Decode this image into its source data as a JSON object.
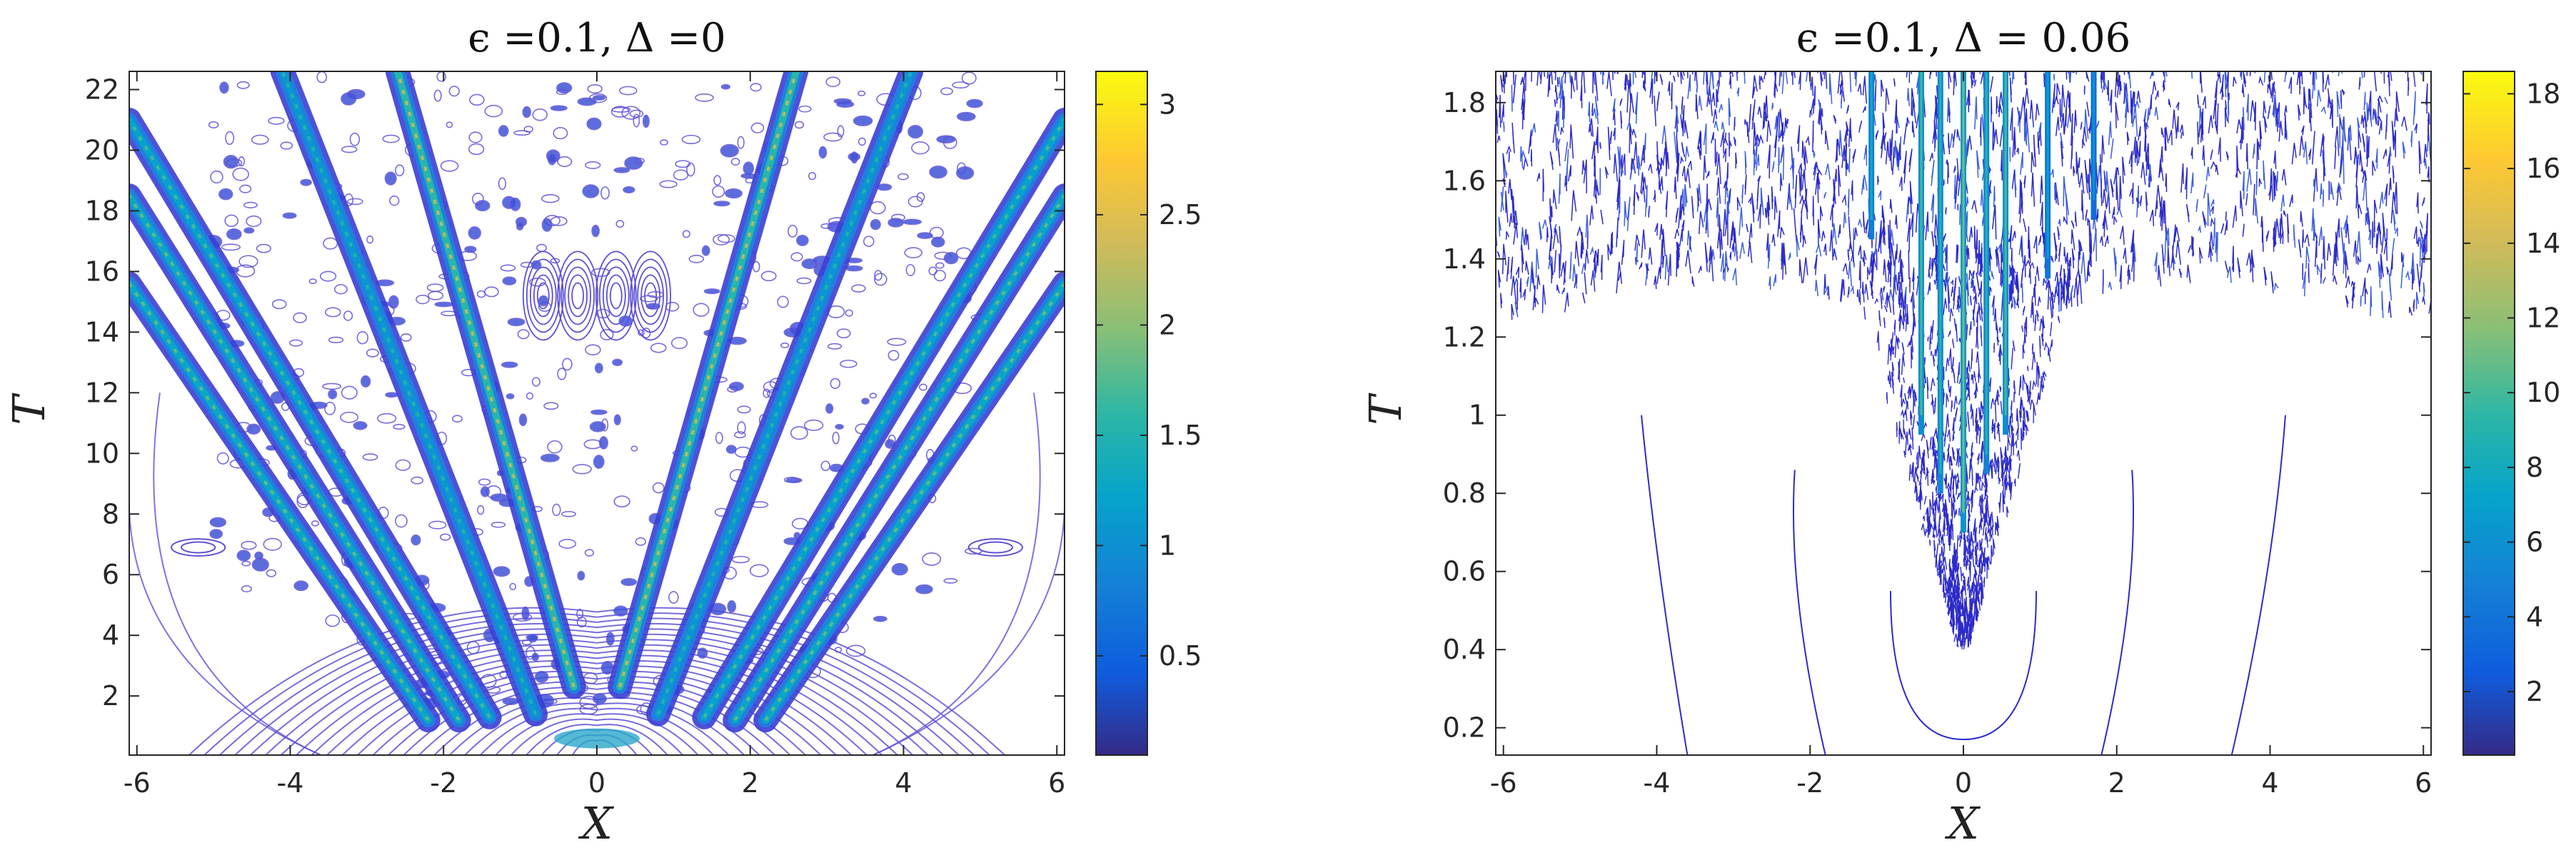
{
  "chart_data": [
    {
      "type": "contour",
      "title": "ϵ =0.1, Δ =0",
      "xlabel": "X",
      "ylabel": "T",
      "xlim": [
        -6.1,
        6.1
      ],
      "ylim": [
        0.05,
        22.6
      ],
      "xticks": [
        -6,
        -4,
        -2,
        0,
        2,
        4,
        6
      ],
      "xtick_labels": [
        "-6",
        "-4",
        "-2",
        "0",
        "2",
        "4",
        "6"
      ],
      "yticks": [
        2,
        4,
        6,
        8,
        10,
        12,
        14,
        16,
        18,
        20,
        22
      ],
      "ytick_labels": [
        "2",
        "4",
        "6",
        "8",
        "10",
        "12",
        "14",
        "16",
        "18",
        "20",
        "22"
      ],
      "colorbar": {
        "min": 0.05,
        "max": 3.15,
        "ticks": [
          0.5,
          1,
          1.5,
          2,
          2.5,
          3
        ],
        "tick_labels": [
          "0.5",
          "1",
          "1.5",
          "2",
          "2.5",
          "3"
        ]
      },
      "rays": [
        {
          "x0": -0.3,
          "t0": 2.3,
          "x1": -2.6,
          "t1": 22.6,
          "peak": 2.2
        },
        {
          "x0": 0.3,
          "t0": 2.3,
          "x1": 2.6,
          "t1": 22.6,
          "peak": 2.2
        },
        {
          "x0": -0.8,
          "t0": 1.4,
          "x1": -4.1,
          "t1": 22.6,
          "peak": 1.5
        },
        {
          "x0": 0.8,
          "t0": 1.4,
          "x1": 4.1,
          "t1": 22.6,
          "peak": 1.5
        },
        {
          "x0": -1.4,
          "t0": 1.3,
          "x1": -6.1,
          "t1": 21.0,
          "peak": 1.7
        },
        {
          "x0": 1.4,
          "t0": 1.3,
          "x1": 6.1,
          "t1": 21.0,
          "peak": 1.7
        },
        {
          "x0": -1.8,
          "t0": 1.2,
          "x1": -6.1,
          "t1": 18.5,
          "peak": 1.8
        },
        {
          "x0": 1.8,
          "t0": 1.2,
          "x1": 6.1,
          "t1": 18.5,
          "peak": 1.8
        },
        {
          "x0": -2.2,
          "t0": 1.2,
          "x1": -6.1,
          "t1": 15.6,
          "peak": 1.8
        },
        {
          "x0": 2.2,
          "t0": 1.2,
          "x1": 6.1,
          "t1": 15.6,
          "peak": 1.8
        }
      ]
    },
    {
      "type": "contour",
      "title": "ϵ =0.1, Δ = 0.06",
      "xlabel": "X",
      "ylabel": "T",
      "xlim": [
        -6.1,
        6.1
      ],
      "ylim": [
        0.13,
        1.88
      ],
      "xticks": [
        -6,
        -4,
        -2,
        0,
        2,
        4,
        6
      ],
      "xtick_labels": [
        "-6",
        "-4",
        "-2",
        "0",
        "2",
        "4",
        "6"
      ],
      "yticks": [
        0.2,
        0.4,
        0.6,
        0.8,
        1,
        1.2,
        1.4,
        1.6,
        1.8
      ],
      "ytick_labels": [
        "0.2",
        "0.4",
        "0.6",
        "0.8",
        "1",
        "1.2",
        "1.4",
        "1.6",
        "1.8"
      ],
      "colorbar": {
        "min": 0.3,
        "max": 18.6,
        "ticks": [
          2,
          4,
          6,
          8,
          10,
          12,
          14,
          16,
          18
        ],
        "tick_labels": [
          "2",
          "4",
          "6",
          "8",
          "10",
          "12",
          "14",
          "16",
          "18"
        ]
      },
      "streaks": [
        {
          "x": -1.2,
          "t0": 1.45,
          "value": 8
        },
        {
          "x": -0.55,
          "t0": 0.95,
          "value": 10
        },
        {
          "x": -0.3,
          "t0": 0.8,
          "value": 9
        },
        {
          "x": 0.0,
          "t0": 0.7,
          "value": 11
        },
        {
          "x": 0.3,
          "t0": 0.85,
          "value": 9
        },
        {
          "x": 0.55,
          "t0": 0.95,
          "value": 10
        },
        {
          "x": 1.1,
          "t0": 1.35,
          "value": 7
        },
        {
          "x": 1.7,
          "t0": 1.5,
          "value": 6
        }
      ]
    }
  ]
}
